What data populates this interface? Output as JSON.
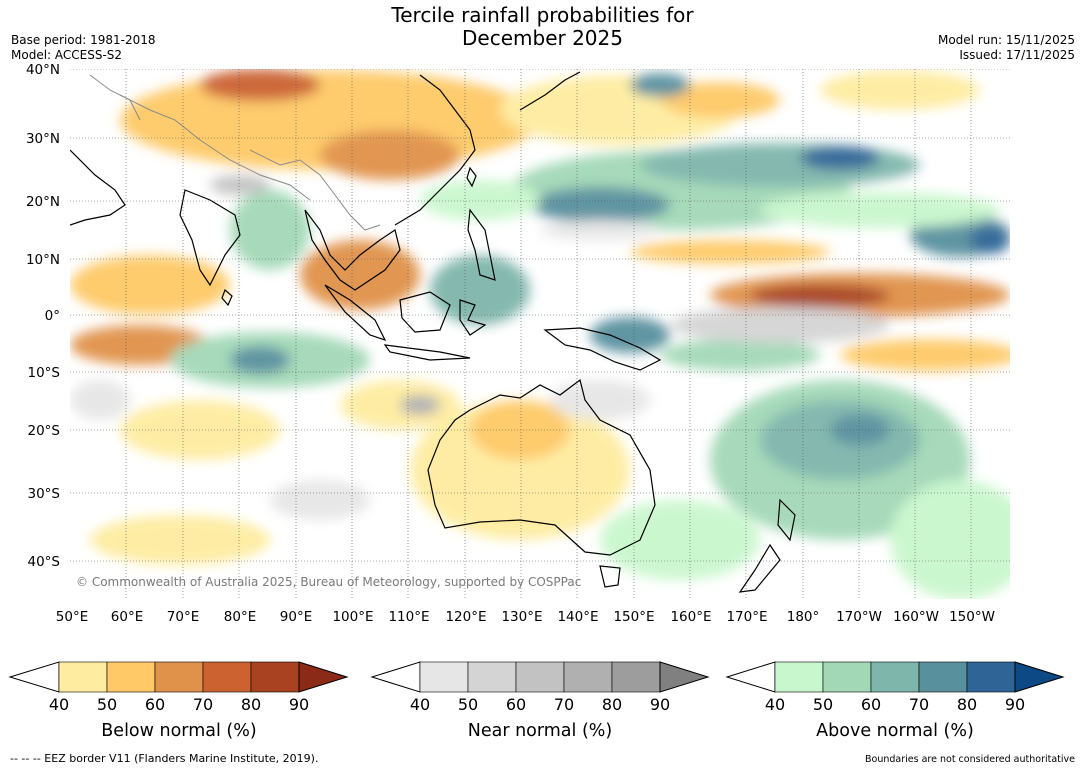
{
  "title_line1": "Tercile rainfall probabilities for",
  "title_line2": "December 2025",
  "meta": {
    "base_period": "Base period: 1981-2018",
    "model": "Model: ACCESS-S2",
    "model_run": "Model run: 15/11/2025",
    "issued": "Issued: 17/11/2025"
  },
  "map": {
    "lat_labels": [
      "40°N",
      "30°N",
      "20°N",
      "10°N",
      "0°",
      "10°S",
      "20°S",
      "30°S",
      "40°S"
    ],
    "lon_labels": [
      "50°E",
      "60°E",
      "70°E",
      "80°E",
      "90°E",
      "100°E",
      "110°E",
      "120°E",
      "130°E",
      "140°E",
      "150°E",
      "160°E",
      "170°E",
      "180°",
      "170°W",
      "160°W",
      "150°W"
    ],
    "copyright": "© Commonwealth of Australia 2025, Bureau of Meteorology, supported by COSPPac"
  },
  "colorbars": [
    {
      "title": "Below normal (%)",
      "ticks": [
        "40",
        "50",
        "60",
        "70",
        "80",
        "90"
      ],
      "colors": [
        "#ffffff",
        "#feeca0",
        "#fec966",
        "#e0924a",
        "#cb6230",
        "#a84221",
        "#8b2a17"
      ]
    },
    {
      "title": "Near normal (%)",
      "ticks": [
        "40",
        "50",
        "60",
        "70",
        "80",
        "90"
      ],
      "colors": [
        "#ffffff",
        "#e6e6e6",
        "#d4d4d4",
        "#c2c2c2",
        "#b0b0b0",
        "#9d9d9d",
        "#808080"
      ]
    },
    {
      "title": "Above normal (%)",
      "ticks": [
        "40",
        "50",
        "60",
        "70",
        "80",
        "90"
      ],
      "colors": [
        "#ffffff",
        "#c9f7cd",
        "#a3d8b7",
        "#7fb6ab",
        "#58909e",
        "#2e6596",
        "#0d4a85"
      ]
    }
  ],
  "footer": {
    "eez": "--  --  -- EEZ border V11 (Flanders Marine Institute, 2019).",
    "disclaimer": "Boundaries are not considered authoritative"
  }
}
